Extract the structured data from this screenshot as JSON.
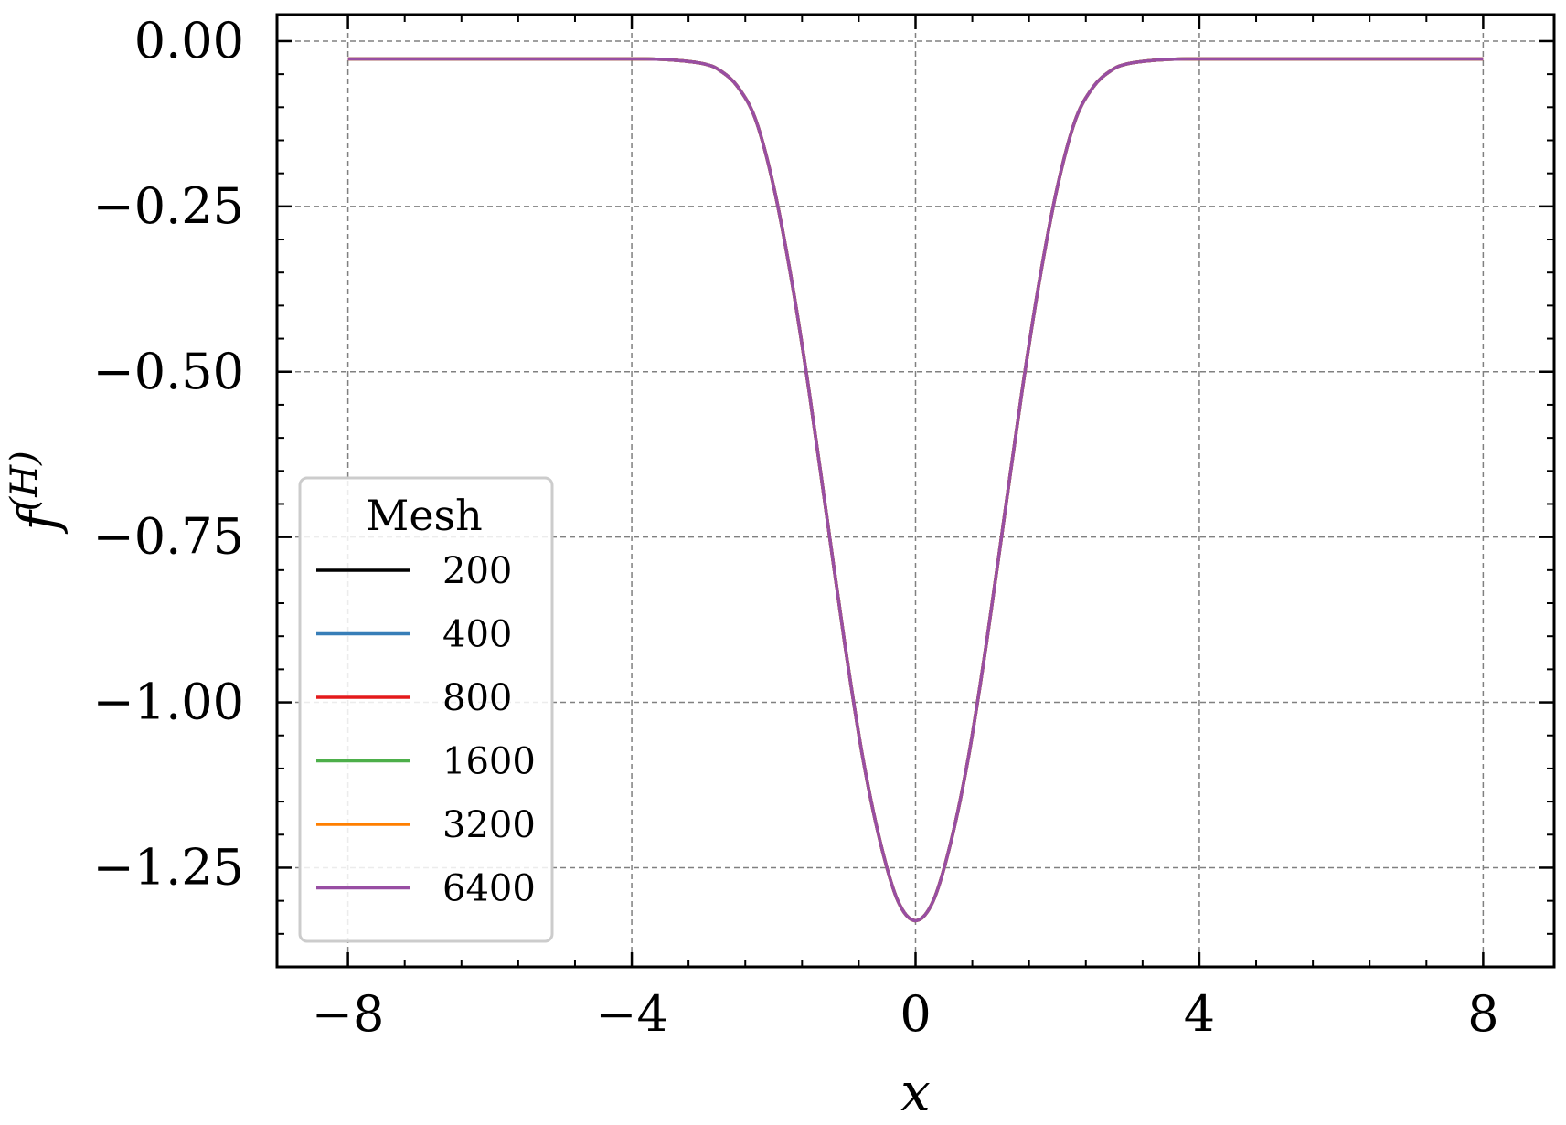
{
  "chart_data": {
    "type": "line",
    "xlabel": "x",
    "ylabel": "f",
    "ylabel_superscript": "(H)",
    "xlim": [
      -9.0,
      9.0
    ],
    "ylim": [
      -1.4,
      0.04
    ],
    "x_ticks": [
      -8,
      -4,
      0,
      4,
      8
    ],
    "x_tick_labels": [
      "−8",
      "−4",
      "0",
      "4",
      "8"
    ],
    "y_ticks": [
      0.0,
      -0.25,
      -0.5,
      -0.75,
      -1.0,
      -1.25
    ],
    "y_tick_labels": [
      "0.00",
      "−0.25",
      "−0.50",
      "−0.75",
      "−1.00",
      "−1.25"
    ],
    "grid": true,
    "legend": {
      "title": "Mesh",
      "placement": "lower-left"
    },
    "x": [
      -8,
      -7,
      -6,
      -5,
      -4,
      -3.5,
      -3,
      -2.75,
      -2.5,
      -2.25,
      -2,
      -1.75,
      -1.5,
      -1.25,
      -1,
      -0.75,
      -0.5,
      -0.25,
      0,
      0.25,
      0.5,
      0.75,
      1,
      1.25,
      1.5,
      1.75,
      2,
      2.25,
      2.5,
      2.75,
      3,
      3.5,
      4,
      5,
      6,
      7,
      8
    ],
    "series": [
      {
        "name": "200",
        "color": "#000000",
        "y": [
          -0.027,
          -0.027,
          -0.027,
          -0.027,
          -0.027,
          -0.028,
          -0.034,
          -0.045,
          -0.07,
          -0.12,
          -0.22,
          -0.36,
          -0.53,
          -0.72,
          -0.91,
          -1.08,
          -1.21,
          -1.3,
          -1.33,
          -1.3,
          -1.21,
          -1.08,
          -0.91,
          -0.72,
          -0.53,
          -0.36,
          -0.22,
          -0.12,
          -0.07,
          -0.045,
          -0.034,
          -0.028,
          -0.027,
          -0.027,
          -0.027,
          -0.027,
          -0.027
        ]
      },
      {
        "name": "400",
        "color": "#377eb8",
        "y": [
          -0.027,
          -0.027,
          -0.027,
          -0.027,
          -0.027,
          -0.028,
          -0.034,
          -0.045,
          -0.07,
          -0.12,
          -0.22,
          -0.36,
          -0.53,
          -0.72,
          -0.91,
          -1.08,
          -1.21,
          -1.3,
          -1.33,
          -1.3,
          -1.21,
          -1.08,
          -0.91,
          -0.72,
          -0.53,
          -0.36,
          -0.22,
          -0.12,
          -0.07,
          -0.045,
          -0.034,
          -0.028,
          -0.027,
          -0.027,
          -0.027,
          -0.027,
          -0.027
        ]
      },
      {
        "name": "800",
        "color": "#e41a1c",
        "y": [
          -0.027,
          -0.027,
          -0.027,
          -0.027,
          -0.027,
          -0.028,
          -0.034,
          -0.045,
          -0.07,
          -0.12,
          -0.22,
          -0.36,
          -0.53,
          -0.72,
          -0.91,
          -1.08,
          -1.21,
          -1.3,
          -1.33,
          -1.3,
          -1.21,
          -1.08,
          -0.91,
          -0.72,
          -0.53,
          -0.36,
          -0.22,
          -0.12,
          -0.07,
          -0.045,
          -0.034,
          -0.028,
          -0.027,
          -0.027,
          -0.027,
          -0.027,
          -0.027
        ]
      },
      {
        "name": "1600",
        "color": "#4daf4a",
        "y": [
          -0.027,
          -0.027,
          -0.027,
          -0.027,
          -0.027,
          -0.028,
          -0.034,
          -0.045,
          -0.07,
          -0.12,
          -0.22,
          -0.36,
          -0.53,
          -0.72,
          -0.91,
          -1.08,
          -1.21,
          -1.3,
          -1.33,
          -1.3,
          -1.21,
          -1.08,
          -0.91,
          -0.72,
          -0.53,
          -0.36,
          -0.22,
          -0.12,
          -0.07,
          -0.045,
          -0.034,
          -0.028,
          -0.027,
          -0.027,
          -0.027,
          -0.027,
          -0.027
        ]
      },
      {
        "name": "3200",
        "color": "#ff7f00",
        "y": [
          -0.027,
          -0.027,
          -0.027,
          -0.027,
          -0.027,
          -0.028,
          -0.034,
          -0.045,
          -0.07,
          -0.12,
          -0.22,
          -0.36,
          -0.53,
          -0.72,
          -0.91,
          -1.08,
          -1.21,
          -1.3,
          -1.33,
          -1.3,
          -1.21,
          -1.08,
          -0.91,
          -0.72,
          -0.53,
          -0.36,
          -0.22,
          -0.12,
          -0.07,
          -0.045,
          -0.034,
          -0.028,
          -0.027,
          -0.027,
          -0.027,
          -0.027,
          -0.027
        ]
      },
      {
        "name": "6400",
        "color": "#984ea3",
        "y": [
          -0.027,
          -0.027,
          -0.027,
          -0.027,
          -0.027,
          -0.028,
          -0.034,
          -0.045,
          -0.07,
          -0.12,
          -0.22,
          -0.36,
          -0.53,
          -0.72,
          -0.91,
          -1.08,
          -1.21,
          -1.3,
          -1.33,
          -1.3,
          -1.21,
          -1.08,
          -0.91,
          -0.72,
          -0.53,
          -0.36,
          -0.22,
          -0.12,
          -0.07,
          -0.045,
          -0.034,
          -0.028,
          -0.027,
          -0.027,
          -0.027,
          -0.027,
          -0.027
        ]
      }
    ]
  }
}
